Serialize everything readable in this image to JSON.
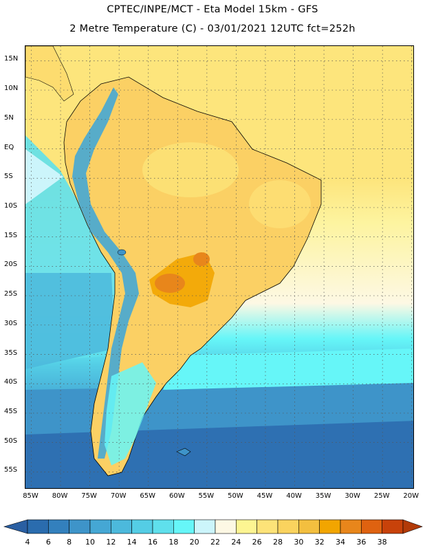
{
  "header": {
    "line1": "CPTEC/INPE/MCT -  Eta Model 15km - GFS",
    "line2": "2 Metre Temperature (C) - 03/01/2021 12UTC fct=252h"
  },
  "axes": {
    "lat_labels": [
      "15N",
      "10N",
      "5N",
      "EQ",
      "5S",
      "10S",
      "15S",
      "20S",
      "25S",
      "30S",
      "35S",
      "40S",
      "45S",
      "50S",
      "55S"
    ],
    "lat_values": [
      15,
      10,
      5,
      0,
      -5,
      -10,
      -15,
      -20,
      -25,
      -30,
      -35,
      -40,
      -45,
      -50,
      -55
    ],
    "lon_labels": [
      "85W",
      "80W",
      "75W",
      "70W",
      "65W",
      "60W",
      "55W",
      "50W",
      "45W",
      "40W",
      "35W",
      "30W",
      "25W",
      "20W"
    ],
    "lon_values": [
      -85,
      -80,
      -75,
      -70,
      -65,
      -60,
      -55,
      -50,
      -45,
      -40,
      -35,
      -30,
      -25,
      -20
    ],
    "lat_range": [
      -58,
      17.5
    ],
    "lon_range": [
      -86,
      -19.5
    ]
  },
  "colorbar": {
    "labels": [
      "4",
      "6",
      "8",
      "10",
      "12",
      "14",
      "16",
      "18",
      "20",
      "22",
      "24",
      "26",
      "28",
      "30",
      "32",
      "34",
      "36",
      "38"
    ],
    "colors": [
      "#2a6cae",
      "#3380bd",
      "#3e94c9",
      "#45a7d4",
      "#4cb9dc",
      "#54cde5",
      "#5fe0ec",
      "#66f6f8",
      "#ccf5fb",
      "#fdf8e4",
      "#fdf592",
      "#fde378",
      "#fad35e",
      "#f3bf3f",
      "#f2a500",
      "#e8861b",
      "#df6210",
      "#c8420a"
    ],
    "under_color": "#2a5fa2",
    "over_color": "#b23a08"
  }
}
